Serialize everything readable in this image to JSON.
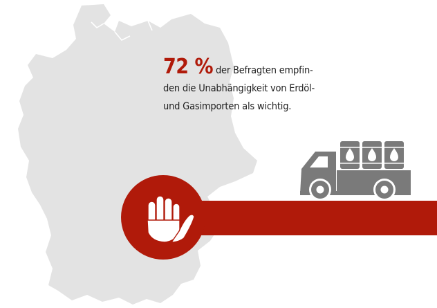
{
  "stat": {
    "percent": "72 %",
    "line1": "der Befragten empfin-",
    "line2": "den die Unabhängigkeit von Erdöl-",
    "line3": "und Gasimporten als wichtig."
  },
  "colors": {
    "accent_red": "#b01a0a",
    "map_gray": "#e3e3e3",
    "truck_gray": "#7a7a7a"
  },
  "icons": [
    "germany-map",
    "stop-hand-icon",
    "truck-icon",
    "oil-barrel-icon"
  ]
}
